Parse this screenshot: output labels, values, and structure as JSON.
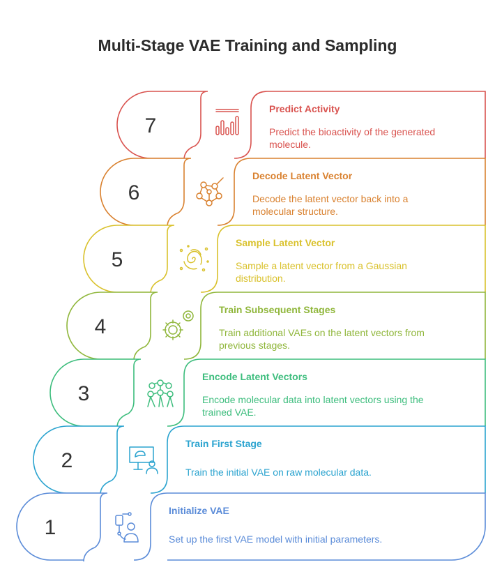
{
  "title": "Multi-Stage VAE Training and Sampling",
  "stages": [
    {
      "number": "1",
      "title": "Initialize VAE",
      "desc_lines": [
        "Set up the first VAE model with initial parameters."
      ],
      "color": "#5a8bd8",
      "icon": "robot-arm-icon"
    },
    {
      "number": "2",
      "title": "Train First Stage",
      "desc_lines": [
        "Train the initial VAE on raw molecular data."
      ],
      "color": "#2aa3cf",
      "icon": "presentation-teacher-icon"
    },
    {
      "number": "3",
      "title": "Encode Latent Vectors",
      "desc_lines": [
        "Encode molecular data into latent vectors using the",
        "trained VAE."
      ],
      "color": "#3dbd7d",
      "icon": "network-nodes-icon"
    },
    {
      "number": "4",
      "title": "Train Subsequent Stages",
      "desc_lines": [
        "Train additional VAEs on the latent vectors from",
        "previous stages."
      ],
      "color": "#8fb63a",
      "icon": "gears-icon"
    },
    {
      "number": "5",
      "title": "Sample Latent Vector",
      "desc_lines": [
        "Sample a latent vector from a Gaussian",
        "distribution."
      ],
      "color": "#d9c12b",
      "icon": "spiral-galaxy-icon"
    },
    {
      "number": "6",
      "title": "Decode Latent Vector",
      "desc_lines": [
        "Decode the latent vector back into a",
        "molecular structure."
      ],
      "color": "#d9812f",
      "icon": "molecule-icon"
    },
    {
      "number": "7",
      "title": "Predict Activity",
      "desc_lines": [
        "Predict the bioactivity of the generated",
        "molecule."
      ],
      "color": "#d9534f",
      "icon": "bar-chart-icon"
    }
  ]
}
